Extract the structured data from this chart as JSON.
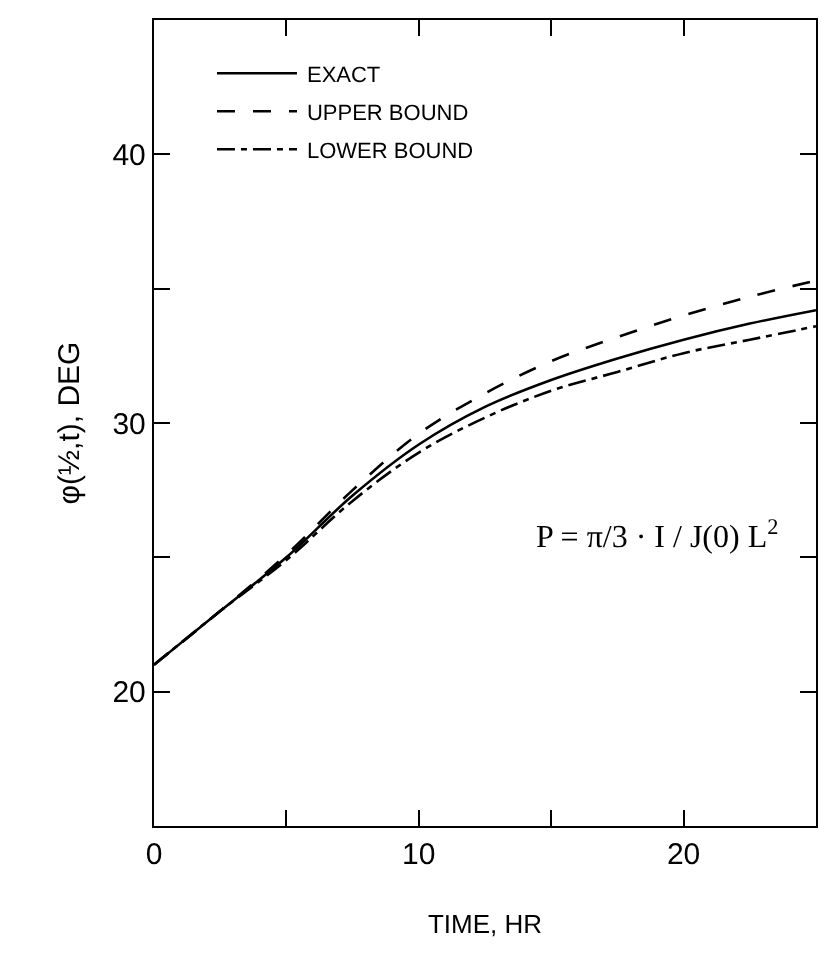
{
  "chart_data": {
    "type": "line",
    "xlabel": "TIME, HR",
    "ylabel": "φ(½,t), DEG",
    "x": [
      0,
      2.5,
      5,
      7.5,
      10,
      12.5,
      15,
      17.5,
      20,
      22.5,
      25
    ],
    "series": [
      {
        "name": "EXACT",
        "color": "#000000",
        "line_style": "solid",
        "values": [
          21.0,
          23.0,
          25.0,
          27.3,
          29.2,
          30.6,
          31.6,
          32.4,
          33.1,
          33.7,
          34.2
        ]
      },
      {
        "name": "UPPER BOUND",
        "color": "#000000",
        "line_style": "dashed",
        "values": [
          21.0,
          23.0,
          25.1,
          27.5,
          29.6,
          31.1,
          32.3,
          33.2,
          34.0,
          34.7,
          35.3
        ]
      },
      {
        "name": "LOWER BOUND",
        "color": "#000000",
        "line_style": "dashdot",
        "values": [
          21.0,
          23.0,
          24.9,
          27.1,
          28.9,
          30.2,
          31.2,
          31.9,
          32.6,
          33.1,
          33.6
        ]
      }
    ],
    "xlim": [
      0,
      25
    ],
    "ylim": [
      15,
      45
    ],
    "xticks": [
      0,
      {
        "value": 5,
        "label": null
      },
      10,
      {
        "value": 15,
        "label": null
      },
      20,
      {
        "value": 25,
        "label": null
      }
    ],
    "yticks": [
      {
        "value": 15,
        "label": null
      },
      20,
      {
        "value": 25,
        "label": null
      },
      30,
      {
        "value": 35,
        "label": null
      },
      40,
      {
        "value": 45,
        "label": null
      }
    ],
    "annotations": [
      "P = π/3 · I / J(0) L$^{2}$"
    ],
    "legend": "top left",
    "marker": "none"
  }
}
